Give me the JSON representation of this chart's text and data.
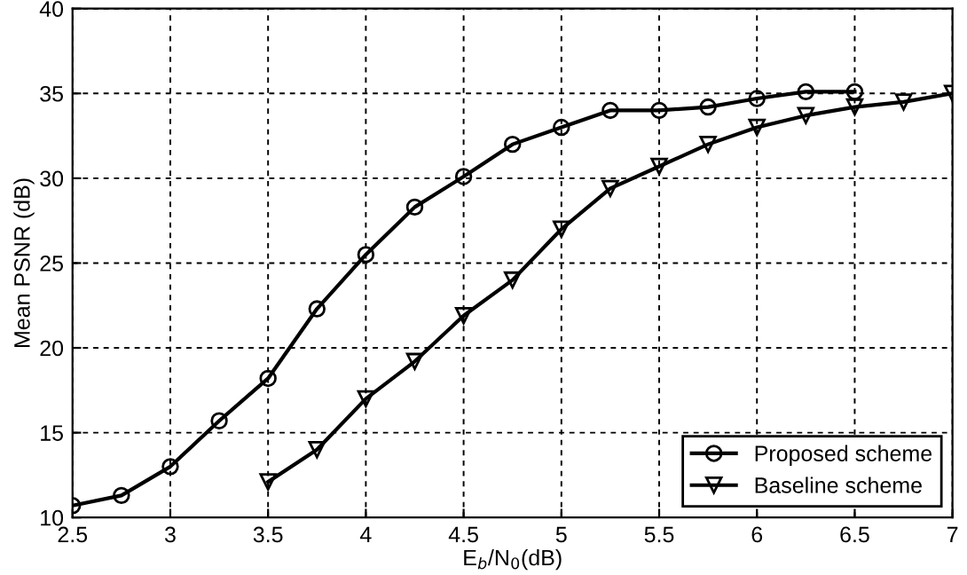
{
  "chart_data": {
    "type": "line",
    "xlabel": "E$_{b}$/N$_{0}$(dB)",
    "ylabel": "Mean PSNR (dB)",
    "series": [
      {
        "name": "Proposed scheme",
        "color": "#000000",
        "marker": "circle",
        "x": [
          2.5,
          2.75,
          3,
          3.25,
          3.5,
          3.75,
          4,
          4.25,
          4.5,
          4.75,
          5,
          5.25,
          5.5,
          5.75,
          6,
          6.25,
          6.5
        ],
        "values": [
          10.7,
          11.3,
          13.0,
          15.7,
          18.2,
          22.3,
          25.5,
          28.3,
          30.1,
          32.0,
          33.0,
          34.0,
          34.0,
          34.2,
          34.7,
          35.1,
          35.1
        ]
      },
      {
        "name": "Baseline scheme",
        "color": "#000000",
        "marker": "triangle",
        "x": [
          3.5,
          3.75,
          4,
          4.25,
          4.5,
          4.75,
          5,
          5.25,
          5.5,
          5.75,
          6,
          6.25,
          6.5,
          6.75,
          7
        ],
        "values": [
          12.1,
          14.0,
          17.0,
          19.2,
          21.9,
          24.0,
          27.0,
          29.4,
          30.7,
          32.0,
          33.0,
          33.7,
          34.2,
          34.5,
          35.0
        ]
      }
    ],
    "xlim": [
      2.5,
      7
    ],
    "ylim": [
      10,
      40
    ],
    "xticks": [
      2.5,
      3,
      3.5,
      4,
      4.5,
      5,
      5.5,
      6,
      6.5,
      7
    ],
    "yticks": [
      10,
      15,
      20,
      25,
      30,
      35,
      40
    ],
    "grid": true,
    "legend": "bottom right",
    "line_style": "solid"
  }
}
